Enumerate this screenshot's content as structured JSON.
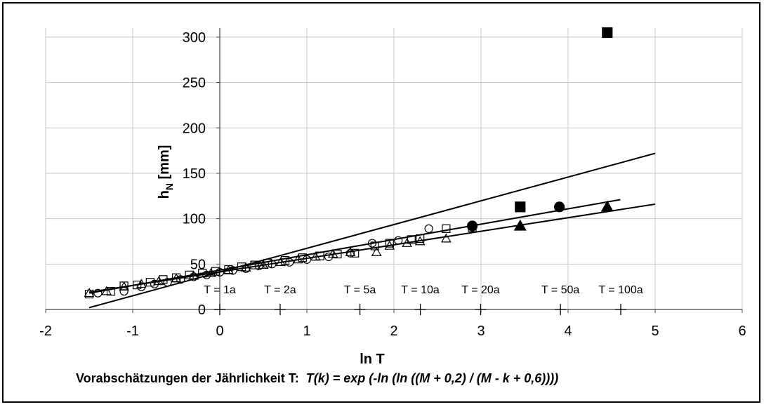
{
  "chart_data": {
    "type": "scatter",
    "title": "",
    "xlabel": "ln T",
    "ylabel_main": "h",
    "ylabel_sub": "N",
    "ylabel_unit": " [mm]",
    "xlim": [
      -2,
      6
    ],
    "ylim": [
      0,
      310
    ],
    "grid": true,
    "x_ticks": [
      -2,
      -1,
      0,
      1,
      2,
      3,
      4,
      5,
      6
    ],
    "y_ticks": [
      0,
      50,
      100,
      150,
      200,
      250,
      300
    ],
    "caption_text": "Vorabschätzungen der Jährlichkeit T:  ",
    "caption_formula": "T(k) = exp (-ln (ln ((M + 0,2) / (M - k + 0,6))))",
    "return_periods": [
      {
        "label": "T = 1a",
        "lnT": 0.0
      },
      {
        "label": "T = 2a",
        "lnT": 0.693
      },
      {
        "label": "T = 5a",
        "lnT": 1.609
      },
      {
        "label": "T = 10a",
        "lnT": 2.303
      },
      {
        "label": "T = 20a",
        "lnT": 2.996
      },
      {
        "label": "T = 50a",
        "lnT": 3.912
      },
      {
        "label": "T = 100a",
        "lnT": 4.605
      }
    ],
    "series": [
      {
        "marker": "circle-open",
        "points": [
          [
            -1.4,
            18
          ],
          [
            -1.1,
            20
          ],
          [
            -0.9,
            25
          ],
          [
            -0.75,
            28
          ],
          [
            -0.6,
            30
          ],
          [
            -0.45,
            33
          ],
          [
            -0.3,
            36
          ],
          [
            -0.15,
            38
          ],
          [
            0.0,
            41
          ],
          [
            0.15,
            43
          ],
          [
            0.3,
            45
          ],
          [
            0.45,
            48
          ],
          [
            0.6,
            50
          ],
          [
            0.8,
            52
          ],
          [
            1.0,
            55
          ],
          [
            1.25,
            58
          ],
          [
            1.5,
            62
          ],
          [
            1.75,
            73
          ],
          [
            2.05,
            76
          ],
          [
            2.4,
            89
          ]
        ]
      },
      {
        "marker": "square-open",
        "points": [
          [
            -1.5,
            17
          ],
          [
            -1.25,
            20
          ],
          [
            -1.1,
            26
          ],
          [
            -0.95,
            27
          ],
          [
            -0.8,
            30
          ],
          [
            -0.65,
            33
          ],
          [
            -0.5,
            35
          ],
          [
            -0.35,
            38
          ],
          [
            -0.2,
            40
          ],
          [
            -0.05,
            42
          ],
          [
            0.1,
            44
          ],
          [
            0.25,
            47
          ],
          [
            0.4,
            49
          ],
          [
            0.55,
            51
          ],
          [
            0.75,
            54
          ],
          [
            0.95,
            57
          ],
          [
            1.15,
            59
          ],
          [
            1.35,
            61
          ],
          [
            1.55,
            62
          ],
          [
            1.78,
            70
          ],
          [
            1.95,
            73
          ],
          [
            2.2,
            77
          ],
          [
            2.3,
            78
          ],
          [
            2.6,
            89
          ],
          [
            2.9,
            90
          ]
        ]
      },
      {
        "marker": "triangle-open",
        "points": [
          [
            -1.5,
            18
          ],
          [
            -1.3,
            20
          ],
          [
            -1.1,
            25
          ],
          [
            -0.9,
            28
          ],
          [
            -0.7,
            31
          ],
          [
            -0.5,
            34
          ],
          [
            -0.3,
            37
          ],
          [
            -0.1,
            40
          ],
          [
            0.1,
            43
          ],
          [
            0.3,
            46
          ],
          [
            0.5,
            49
          ],
          [
            0.7,
            52
          ],
          [
            0.9,
            55
          ],
          [
            1.1,
            58
          ],
          [
            1.3,
            61
          ],
          [
            1.5,
            63
          ],
          [
            1.8,
            63
          ],
          [
            1.95,
            70
          ],
          [
            2.15,
            73
          ],
          [
            2.3,
            75
          ],
          [
            2.6,
            78
          ]
        ]
      },
      {
        "marker": "square-filled",
        "points": [
          [
            3.45,
            113
          ],
          [
            4.45,
            305
          ]
        ]
      },
      {
        "marker": "circle-filled",
        "points": [
          [
            2.9,
            92
          ],
          [
            3.9,
            113
          ]
        ]
      },
      {
        "marker": "triangle-filled",
        "points": [
          [
            3.45,
            92
          ],
          [
            4.45,
            113
          ]
        ]
      }
    ],
    "fit_lines": [
      {
        "x": [
          -1.5,
          5.0
        ],
        "y": [
          2,
          172
        ]
      },
      {
        "x": [
          -1.5,
          4.6
        ],
        "y": [
          18,
          121
        ]
      },
      {
        "x": [
          -1.5,
          5.0
        ],
        "y": [
          19,
          116
        ]
      }
    ]
  }
}
